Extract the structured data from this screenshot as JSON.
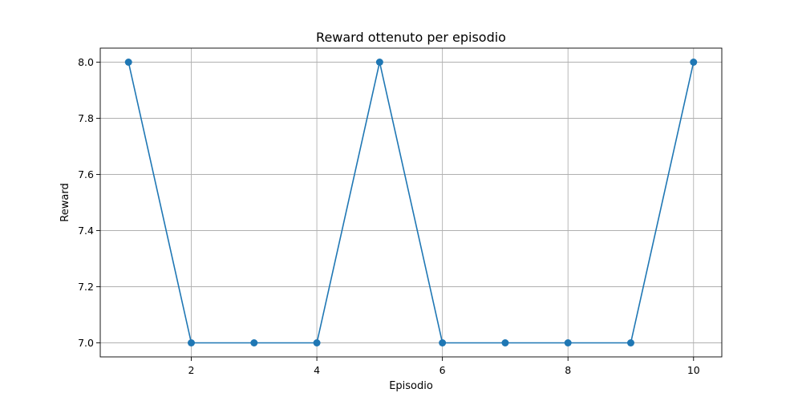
{
  "chart_data": {
    "type": "line",
    "title": "Reward ottenuto per episodio",
    "xlabel": "Episodio",
    "ylabel": "Reward",
    "x": [
      1,
      2,
      3,
      4,
      5,
      6,
      7,
      8,
      9,
      10
    ],
    "series": [
      {
        "values": [
          8.0,
          7.0,
          7.0,
          7.0,
          8.0,
          7.0,
          7.0,
          7.0,
          7.0,
          8.0
        ],
        "color": "#1f77b4",
        "marker": "circle"
      }
    ],
    "xlim": [
      0.55,
      10.45
    ],
    "ylim": [
      6.95,
      8.05
    ],
    "xticks": [
      2,
      4,
      6,
      8,
      10
    ],
    "xtick_labels": [
      "2",
      "4",
      "6",
      "8",
      "10"
    ],
    "yticks": [
      7.0,
      7.2,
      7.4,
      7.6,
      7.8,
      8.0
    ],
    "ytick_labels": [
      "7.0",
      "7.2",
      "7.4",
      "7.6",
      "7.8",
      "8.0"
    ],
    "grid": true
  }
}
